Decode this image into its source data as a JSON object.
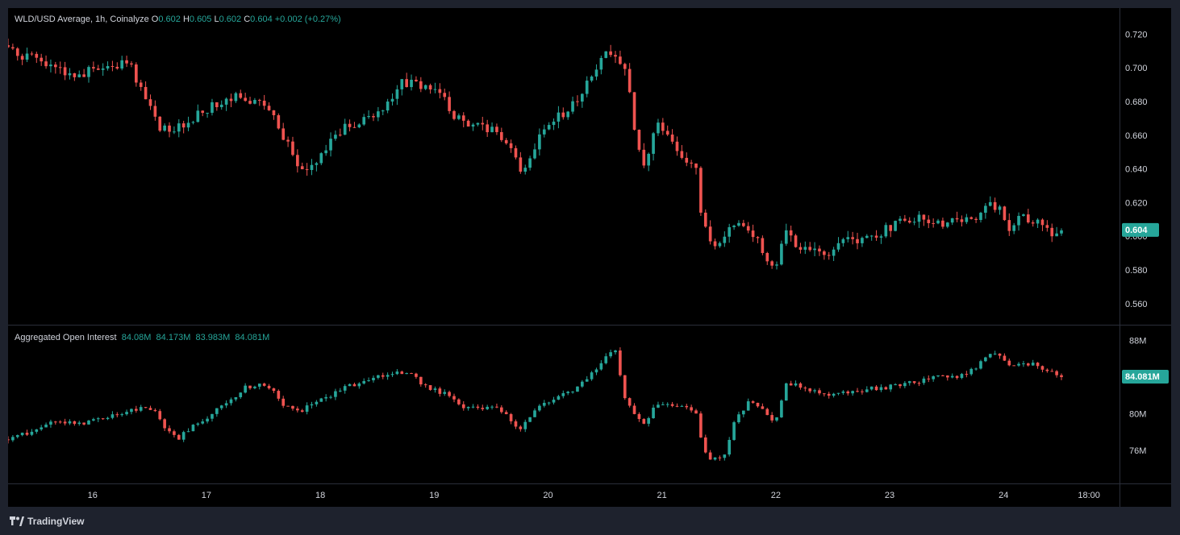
{
  "header": {
    "title": "WLD/USD Average, 1h, Coinalyze",
    "open_label": "O",
    "open": "0.602",
    "high_label": "H",
    "high": "0.605",
    "low_label": "L",
    "low": "0.602",
    "close_label": "C",
    "close": "0.604",
    "change": "+0.002 (+0.27%)"
  },
  "oi_header": {
    "title": "Aggregated Open Interest",
    "v1": "84.08M",
    "v2": "84.173M",
    "v3": "83.983M",
    "v4": "84.081M"
  },
  "footer": {
    "brand": "TradingView",
    "logo_icon": "tradingview-logo-icon"
  },
  "colors": {
    "up": "#26a69a",
    "down": "#ef5350",
    "text": "#d1d4dc",
    "background": "#000000",
    "grid": "#2a2e39"
  },
  "chart_data": [
    {
      "type": "candlestick",
      "title": "WLD/USD Average, 1h, Coinalyze",
      "y_ticks": [
        "0.720",
        "0.700",
        "0.680",
        "0.660",
        "0.640",
        "0.620",
        "0.600",
        "0.580",
        "0.560"
      ],
      "y_tick_values": [
        0.72,
        0.7,
        0.68,
        0.66,
        0.64,
        0.62,
        0.6,
        0.58,
        0.56
      ],
      "ylim": [
        0.548,
        0.736
      ],
      "last_value_label": "0.604",
      "last_value": 0.604,
      "x_ticks": [
        "16",
        "17",
        "18",
        "19",
        "20",
        "21",
        "22",
        "23",
        "24",
        "18:00"
      ],
      "x_tick_values": [
        15.9583,
        16.9583,
        17.9583,
        18.9583,
        19.9583,
        20.9583,
        21.9583,
        22.9583,
        23.9583,
        24.7083
      ],
      "xlim": [
        15.2167,
        24.9767
      ],
      "anchors": [
        [
          15.2167,
          0.714
        ],
        [
          15.32,
          0.705
        ],
        [
          15.45,
          0.709
        ],
        [
          15.55,
          0.701
        ],
        [
          15.65,
          0.699
        ],
        [
          15.75,
          0.695
        ],
        [
          15.9,
          0.698
        ],
        [
          16.05,
          0.699
        ],
        [
          16.2,
          0.702
        ],
        [
          16.28,
          0.704
        ],
        [
          16.35,
          0.69
        ],
        [
          16.45,
          0.681
        ],
        [
          16.55,
          0.666
        ],
        [
          16.65,
          0.664
        ],
        [
          16.8,
          0.668
        ],
        [
          16.9,
          0.674
        ],
        [
          17.05,
          0.679
        ],
        [
          17.15,
          0.682
        ],
        [
          17.3,
          0.683
        ],
        [
          17.45,
          0.68
        ],
        [
          17.55,
          0.673
        ],
        [
          17.65,
          0.658
        ],
        [
          17.78,
          0.64
        ],
        [
          17.9,
          0.643
        ],
        [
          18.02,
          0.655
        ],
        [
          18.15,
          0.664
        ],
        [
          18.3,
          0.668
        ],
        [
          18.45,
          0.675
        ],
        [
          18.6,
          0.683
        ],
        [
          18.68,
          0.692
        ],
        [
          18.8,
          0.69
        ],
        [
          18.92,
          0.688
        ],
        [
          19.05,
          0.683
        ],
        [
          19.15,
          0.67
        ],
        [
          19.25,
          0.668
        ],
        [
          19.35,
          0.665
        ],
        [
          19.5,
          0.664
        ],
        [
          19.62,
          0.652
        ],
        [
          19.72,
          0.639
        ],
        [
          19.82,
          0.652
        ],
        [
          19.95,
          0.668
        ],
        [
          20.12,
          0.675
        ],
        [
          20.25,
          0.686
        ],
        [
          20.35,
          0.697
        ],
        [
          20.45,
          0.71
        ],
        [
          20.55,
          0.708
        ],
        [
          20.65,
          0.695
        ],
        [
          20.72,
          0.665
        ],
        [
          20.8,
          0.642
        ],
        [
          20.9,
          0.665
        ],
        [
          21.0,
          0.665
        ],
        [
          21.1,
          0.648
        ],
        [
          21.2,
          0.643
        ],
        [
          21.27,
          0.638
        ],
        [
          21.3,
          0.612
        ],
        [
          21.38,
          0.598
        ],
        [
          21.48,
          0.595
        ],
        [
          21.6,
          0.61
        ],
        [
          21.7,
          0.608
        ],
        [
          21.8,
          0.598
        ],
        [
          21.9,
          0.58
        ],
        [
          21.96,
          0.582
        ],
        [
          22.05,
          0.604
        ],
        [
          22.15,
          0.595
        ],
        [
          22.25,
          0.59
        ],
        [
          22.4,
          0.591
        ],
        [
          22.55,
          0.596
        ],
        [
          22.7,
          0.6
        ],
        [
          22.85,
          0.601
        ],
        [
          23.0,
          0.608
        ],
        [
          23.2,
          0.611
        ],
        [
          23.4,
          0.609
        ],
        [
          23.6,
          0.608
        ],
        [
          23.75,
          0.612
        ],
        [
          23.85,
          0.62
        ],
        [
          23.92,
          0.618
        ],
        [
          24.0,
          0.606
        ],
        [
          24.1,
          0.612
        ],
        [
          24.2,
          0.611
        ],
        [
          24.32,
          0.608
        ],
        [
          24.4,
          0.602
        ],
        [
          24.46,
          0.604
        ]
      ]
    },
    {
      "type": "candlestick",
      "title": "Aggregated Open Interest",
      "y_ticks": [
        "88M",
        "80M",
        "76M"
      ],
      "y_tick_values": [
        88,
        80,
        76
      ],
      "ylim": [
        72.5,
        89.7
      ],
      "last_value_label": "84.081M",
      "last_value": 84.081,
      "anchors": [
        [
          15.2167,
          77.3
        ],
        [
          15.5,
          78.5
        ],
        [
          15.65,
          79.5
        ],
        [
          15.8,
          79.0
        ],
        [
          15.95,
          79.2
        ],
        [
          16.2,
          80.0
        ],
        [
          16.35,
          80.6
        ],
        [
          16.5,
          80.5
        ],
        [
          16.6,
          78.3
        ],
        [
          16.7,
          77.3
        ],
        [
          16.85,
          78.8
        ],
        [
          17.0,
          80.0
        ],
        [
          17.15,
          81.4
        ],
        [
          17.3,
          83.0
        ],
        [
          17.45,
          83.2
        ],
        [
          17.55,
          82.8
        ],
        [
          17.65,
          80.8
        ],
        [
          17.8,
          80.5
        ],
        [
          17.95,
          81.5
        ],
        [
          18.1,
          82.5
        ],
        [
          18.25,
          83.3
        ],
        [
          18.45,
          84.0
        ],
        [
          18.6,
          84.6
        ],
        [
          18.75,
          84.3
        ],
        [
          18.9,
          83.0
        ],
        [
          19.05,
          82.3
        ],
        [
          19.2,
          81.0
        ],
        [
          19.35,
          80.5
        ],
        [
          19.5,
          80.8
        ],
        [
          19.62,
          79.5
        ],
        [
          19.72,
          78.2
        ],
        [
          19.85,
          80.8
        ],
        [
          19.98,
          81.5
        ],
        [
          20.15,
          82.5
        ],
        [
          20.28,
          83.5
        ],
        [
          20.38,
          85.0
        ],
        [
          20.48,
          86.3
        ],
        [
          20.55,
          87.2
        ],
        [
          20.62,
          82.0
        ],
        [
          20.7,
          80.5
        ],
        [
          20.8,
          79.0
        ],
        [
          20.9,
          81.0
        ],
        [
          21.05,
          81.0
        ],
        [
          21.15,
          80.8
        ],
        [
          21.25,
          80.4
        ],
        [
          21.32,
          76.5
        ],
        [
          21.4,
          75.0
        ],
        [
          21.5,
          75.5
        ],
        [
          21.6,
          79.3
        ],
        [
          21.72,
          81.5
        ],
        [
          21.85,
          80.3
        ],
        [
          21.95,
          78.8
        ],
        [
          22.05,
          83.5
        ],
        [
          22.25,
          82.8
        ],
        [
          22.4,
          82.0
        ],
        [
          22.6,
          82.4
        ],
        [
          22.8,
          82.8
        ],
        [
          23.0,
          83.1
        ],
        [
          23.2,
          83.6
        ],
        [
          23.35,
          84.0
        ],
        [
          23.55,
          84.2
        ],
        [
          23.7,
          85.0
        ],
        [
          23.85,
          86.8
        ],
        [
          23.92,
          86.5
        ],
        [
          24.02,
          85.2
        ],
        [
          24.12,
          85.5
        ],
        [
          24.25,
          85.4
        ],
        [
          24.35,
          84.7
        ],
        [
          24.46,
          84.08
        ]
      ]
    }
  ]
}
